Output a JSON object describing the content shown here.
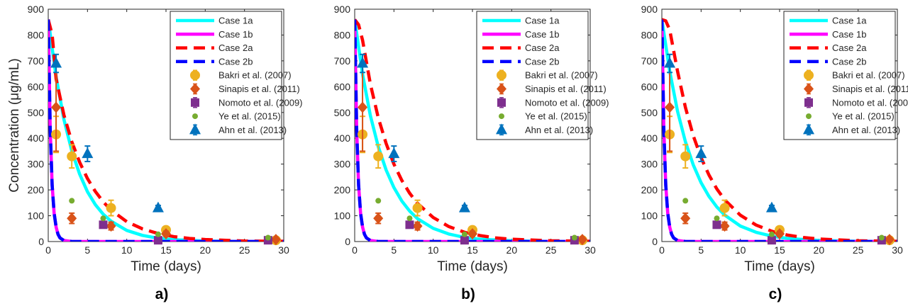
{
  "figure": {
    "ylabel": "Concentration (μg/mL)",
    "xlabel": "Time (days)",
    "panel_labels": [
      "a)",
      "b)",
      "c)"
    ]
  },
  "colors": {
    "case_1a": "#00FFFF",
    "case_1b": "#FF00FF",
    "case_2a": "#FF0000",
    "case_2b": "#0000FF",
    "bakri": "#EDB120",
    "sinapis": "#D95319",
    "nomoto": "#7E2F8E",
    "ye": "#77AC30",
    "ahn": "#0072BD"
  },
  "legend": [
    {
      "label": "Case 1a",
      "kind": "line",
      "color": "#00FFFF"
    },
    {
      "label": "Case 1b",
      "kind": "line",
      "color": "#FF00FF"
    },
    {
      "label": "Case 2a",
      "kind": "dashed",
      "color": "#FF0000"
    },
    {
      "label": "Case 2b",
      "kind": "dashed",
      "color": "#0000FF"
    },
    {
      "label": "Bakri et al. (2007)",
      "kind": "marker",
      "marker": "circle",
      "color": "#EDB120"
    },
    {
      "label": "Sinapis et al. (2011)",
      "kind": "marker",
      "marker": "diamond",
      "color": "#D95319"
    },
    {
      "label": "Nomoto et al. (2009)",
      "kind": "marker",
      "marker": "square",
      "color": "#7E2F8E"
    },
    {
      "label": "Ye et al. (2015)",
      "kind": "marker",
      "marker": "dot",
      "color": "#77AC30"
    },
    {
      "label": "Ahn et al. (2013)",
      "kind": "marker",
      "marker": "triangle",
      "color": "#0072BD"
    }
  ],
  "chart_data": [
    {
      "type": "line",
      "panel": "a)",
      "xlim": [
        0,
        30
      ],
      "ylim": [
        0,
        900
      ],
      "xticks": [
        0,
        5,
        10,
        15,
        20,
        25,
        30
      ],
      "yticks": [
        0,
        100,
        200,
        300,
        400,
        500,
        600,
        700,
        800,
        900
      ],
      "legend_position": "top-right",
      "grid": false,
      "series": [
        {
          "name": "Case 1a",
          "style": "solid",
          "x": [
            0,
            1,
            2,
            3,
            4,
            5,
            6,
            7,
            8,
            10,
            12,
            14,
            16,
            20,
            25,
            30
          ],
          "y": [
            860,
            638,
            473,
            351,
            261,
            193,
            143,
            106,
            79,
            43,
            24,
            13,
            7,
            2,
            0,
            0
          ]
        },
        {
          "name": "Case 1b",
          "style": "solid",
          "x": [
            0,
            0.25,
            0.5,
            0.75,
            1,
            1.25,
            1.5,
            2,
            3,
            4,
            5,
            30
          ],
          "y": [
            860,
            434,
            219,
            110,
            56,
            28,
            14,
            4,
            0,
            0,
            0,
            0
          ]
        },
        {
          "name": "Case 2a",
          "style": "dashed",
          "x": [
            0,
            0.5,
            1,
            2,
            3,
            4,
            5,
            6,
            7,
            8,
            10,
            12,
            14,
            16,
            18,
            20,
            25,
            30
          ],
          "y": [
            860,
            802,
            630,
            490,
            387,
            307,
            244,
            194,
            154,
            122,
            77,
            49,
            31,
            19,
            12,
            8,
            2,
            1
          ]
        },
        {
          "name": "Case 2b",
          "style": "dashed",
          "x": [
            0,
            0.25,
            0.5,
            0.75,
            1,
            1.25,
            1.5,
            2,
            3,
            4,
            5,
            30
          ],
          "y": [
            860,
            434,
            219,
            110,
            56,
            28,
            14,
            4,
            0,
            0,
            0,
            0
          ]
        }
      ],
      "points": [
        {
          "name": "Bakri et al. (2007)",
          "marker": "circle",
          "x": [
            1,
            3,
            8,
            15,
            29
          ],
          "y": [
            415,
            330,
            130,
            45,
            5
          ],
          "err": [
            70,
            45,
            30,
            10,
            0
          ]
        },
        {
          "name": "Sinapis et al. (2011)",
          "marker": "diamond",
          "x": [
            1,
            3,
            8,
            15,
            29
          ],
          "y": [
            520,
            90,
            60,
            30,
            8
          ],
          "err": [
            170,
            20,
            15,
            10,
            0
          ]
        },
        {
          "name": "Nomoto et al. (2009)",
          "marker": "square",
          "x": [
            7,
            14,
            28
          ],
          "y": [
            65,
            5,
            5
          ],
          "err": [
            10,
            0,
            0
          ]
        },
        {
          "name": "Ye et al. (2015)",
          "marker": "dot",
          "x": [
            3,
            7,
            14,
            28
          ],
          "y": [
            158,
            90,
            28,
            15
          ],
          "err": [
            0,
            0,
            0,
            0
          ]
        },
        {
          "name": "Ahn et al. (2013)",
          "marker": "triangle",
          "x": [
            1,
            5,
            14
          ],
          "y": [
            690,
            340,
            130
          ],
          "err": [
            35,
            30,
            10
          ]
        }
      ]
    },
    {
      "type": "line",
      "panel": "b)",
      "xlim": [
        0,
        30
      ],
      "ylim": [
        0,
        900
      ],
      "xticks": [
        0,
        5,
        10,
        15,
        20,
        25,
        30
      ],
      "yticks": [
        0,
        100,
        200,
        300,
        400,
        500,
        600,
        700,
        800,
        900
      ],
      "legend_position": "top-right",
      "grid": false,
      "series": [
        {
          "name": "Case 1a",
          "style": "solid",
          "x": [
            0,
            1,
            2,
            3,
            4,
            5,
            6,
            7,
            8,
            10,
            12,
            14,
            16,
            20,
            25,
            30
          ],
          "y": [
            860,
            648,
            488,
            368,
            277,
            209,
            157,
            118,
            89,
            51,
            29,
            16,
            9,
            3,
            0,
            0
          ]
        },
        {
          "name": "Case 1b",
          "style": "solid",
          "x": [
            0,
            0.25,
            0.5,
            0.75,
            1,
            1.25,
            1.5,
            2,
            3,
            4,
            5,
            30
          ],
          "y": [
            860,
            434,
            219,
            110,
            56,
            28,
            14,
            4,
            0,
            0,
            0,
            0
          ]
        },
        {
          "name": "Case 2a",
          "style": "dashed",
          "x": [
            0,
            0.5,
            1,
            2,
            3,
            4,
            5,
            6,
            7,
            8,
            10,
            12,
            14,
            16,
            18,
            20,
            25,
            30
          ],
          "y": [
            860,
            840,
            780,
            610,
            480,
            380,
            300,
            237,
            187,
            148,
            93,
            58,
            36,
            23,
            14,
            9,
            3,
            1
          ]
        },
        {
          "name": "Case 2b",
          "style": "dashed",
          "x": [
            0,
            0.25,
            0.5,
            0.75,
            1,
            1.25,
            1.5,
            2,
            3,
            4,
            5,
            30
          ],
          "y": [
            860,
            434,
            219,
            110,
            56,
            28,
            14,
            4,
            0,
            0,
            0,
            0
          ]
        }
      ],
      "points": [
        {
          "name": "Bakri et al. (2007)",
          "marker": "circle",
          "x": [
            1,
            3,
            8,
            15,
            29
          ],
          "y": [
            415,
            330,
            130,
            45,
            5
          ],
          "err": [
            70,
            45,
            30,
            10,
            0
          ]
        },
        {
          "name": "Sinapis et al. (2011)",
          "marker": "diamond",
          "x": [
            1,
            3,
            8,
            15,
            29
          ],
          "y": [
            520,
            90,
            60,
            30,
            8
          ],
          "err": [
            170,
            20,
            15,
            10,
            0
          ]
        },
        {
          "name": "Nomoto et al. (2009)",
          "marker": "square",
          "x": [
            7,
            14,
            28
          ],
          "y": [
            65,
            5,
            5
          ],
          "err": [
            10,
            0,
            0
          ]
        },
        {
          "name": "Ye et al. (2015)",
          "marker": "dot",
          "x": [
            3,
            7,
            14,
            28
          ],
          "y": [
            158,
            90,
            28,
            15
          ],
          "err": [
            0,
            0,
            0,
            0
          ]
        },
        {
          "name": "Ahn et al. (2013)",
          "marker": "triangle",
          "x": [
            1,
            5,
            14
          ],
          "y": [
            690,
            340,
            130
          ],
          "err": [
            35,
            30,
            10
          ]
        }
      ]
    },
    {
      "type": "line",
      "panel": "c)",
      "xlim": [
        0,
        30
      ],
      "ylim": [
        0,
        900
      ],
      "xticks": [
        0,
        5,
        10,
        15,
        20,
        25,
        30
      ],
      "yticks": [
        0,
        100,
        200,
        300,
        400,
        500,
        600,
        700,
        800,
        900
      ],
      "legend_position": "top-right",
      "grid": false,
      "series": [
        {
          "name": "Case 1a",
          "style": "solid",
          "x": [
            0,
            1,
            2,
            3,
            4,
            5,
            6,
            7,
            8,
            10,
            12,
            14,
            16,
            20,
            25,
            30
          ],
          "y": [
            860,
            660,
            505,
            387,
            297,
            228,
            175,
            134,
            103,
            60,
            36,
            21,
            12,
            4,
            1,
            0
          ]
        },
        {
          "name": "Case 1b",
          "style": "solid",
          "x": [
            0,
            0.25,
            0.5,
            0.75,
            1,
            1.25,
            1.5,
            2,
            3,
            4,
            5,
            30
          ],
          "y": [
            860,
            434,
            219,
            110,
            56,
            28,
            14,
            4,
            0,
            0,
            0,
            0
          ]
        },
        {
          "name": "Case 2a",
          "style": "dashed",
          "x": [
            0,
            0.5,
            1,
            2,
            3,
            4,
            5,
            6,
            7,
            8,
            10,
            12,
            14,
            16,
            18,
            20,
            25,
            30
          ],
          "y": [
            860,
            855,
            820,
            660,
            520,
            410,
            325,
            258,
            204,
            162,
            102,
            64,
            40,
            25,
            16,
            10,
            3,
            1
          ]
        },
        {
          "name": "Case 2b",
          "style": "dashed",
          "x": [
            0,
            0.25,
            0.5,
            0.75,
            1,
            1.25,
            1.5,
            2,
            3,
            4,
            5,
            30
          ],
          "y": [
            860,
            434,
            219,
            110,
            56,
            28,
            14,
            4,
            0,
            0,
            0,
            0
          ]
        }
      ],
      "points": [
        {
          "name": "Bakri et al. (2007)",
          "marker": "circle",
          "x": [
            1,
            3,
            8,
            15,
            29
          ],
          "y": [
            415,
            330,
            130,
            45,
            5
          ],
          "err": [
            70,
            45,
            30,
            10,
            0
          ]
        },
        {
          "name": "Sinapis et al. (2011)",
          "marker": "diamond",
          "x": [
            1,
            3,
            8,
            15,
            29
          ],
          "y": [
            520,
            90,
            60,
            30,
            8
          ],
          "err": [
            170,
            20,
            15,
            10,
            0
          ]
        },
        {
          "name": "Nomoto et al. (2009)",
          "marker": "square",
          "x": [
            7,
            14,
            28
          ],
          "y": [
            65,
            5,
            5
          ],
          "err": [
            10,
            0,
            0
          ]
        },
        {
          "name": "Ye et al. (2015)",
          "marker": "dot",
          "x": [
            3,
            7,
            14,
            28
          ],
          "y": [
            158,
            90,
            28,
            15
          ],
          "err": [
            0,
            0,
            0,
            0
          ]
        },
        {
          "name": "Ahn et al. (2013)",
          "marker": "triangle",
          "x": [
            1,
            5,
            14
          ],
          "y": [
            690,
            340,
            130
          ],
          "err": [
            35,
            30,
            10
          ]
        }
      ]
    }
  ]
}
